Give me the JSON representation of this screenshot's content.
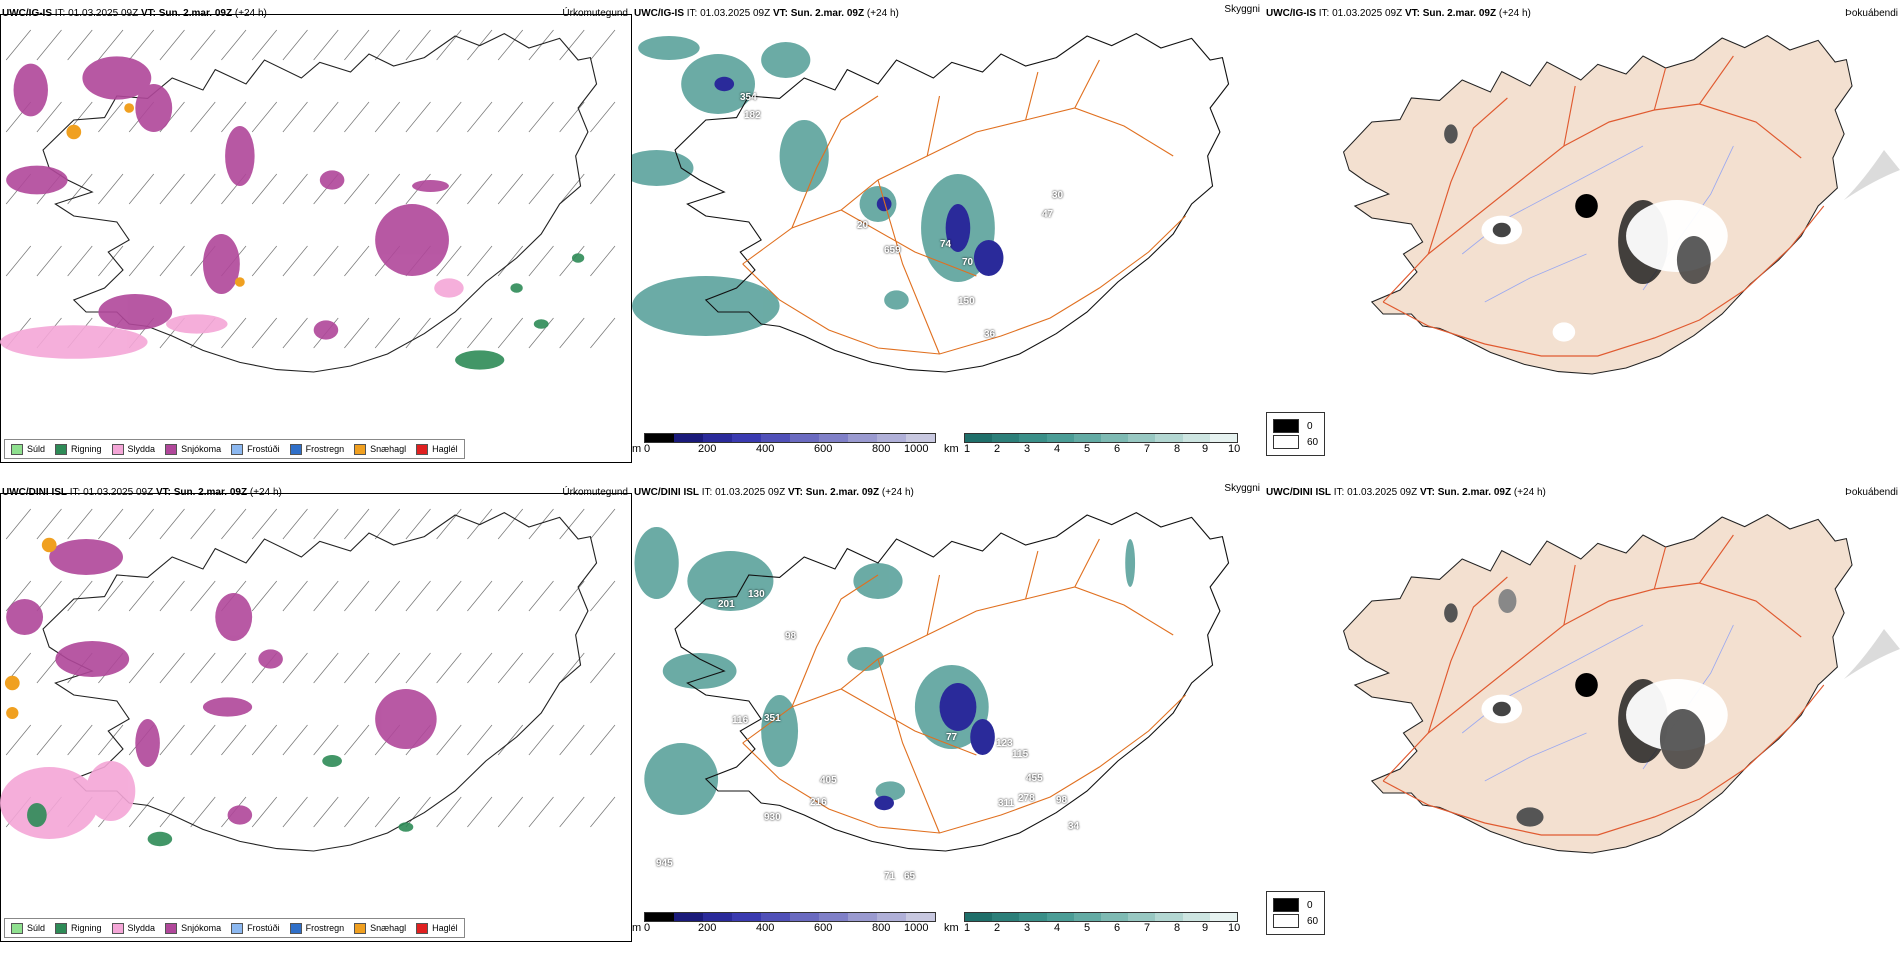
{
  "rows": [
    {
      "precip": {
        "title_bold": "UWC/IG-IS",
        "title_mid": " IT: 01.03.2025 09Z ",
        "title_vt": "VT: Sun. 2.mar. 09Z",
        "title_end": " (+24 h)",
        "right_label": "Úrkomutegund"
      },
      "cloud": {
        "title_bold": "UWC/IG-IS",
        "title_mid": " IT: 01.03.2025 09Z ",
        "title_vt": "VT: Sun. 2.mar. 09Z",
        "title_end": " (+24 h)",
        "right_label": "Skyggni",
        "labels": [
          "354",
          "182",
          "20",
          "659",
          "74",
          "70",
          "47",
          "30",
          "150",
          "36"
        ]
      },
      "fog": {
        "title_bold": "UWC/IG-IS",
        "title_mid": " IT: 01.03.2025 09Z ",
        "title_vt": "VT: Sun. 2.mar. 09Z",
        "title_end": " (+24 h)",
        "right_label": "Þokuábendi"
      }
    },
    {
      "precip": {
        "title_bold": "UWC/DINI ISL",
        "title_mid": " IT: 01.03.2025 09Z ",
        "title_vt": "VT: Sun. 2.mar. 09Z",
        "title_end": " (+24 h)",
        "right_label": "Úrkomutegund"
      },
      "cloud": {
        "title_bold": "UWC/DINI ISL",
        "title_mid": " IT: 01.03.2025 09Z ",
        "title_vt": "VT: Sun. 2.mar. 09Z",
        "title_end": " (+24 h)",
        "right_label": "Skyggni",
        "labels": [
          "201",
          "130",
          "98",
          "116",
          "351",
          "405",
          "216",
          "930",
          "945",
          "77",
          "123",
          "115",
          "455",
          "278",
          "311",
          "98",
          "34",
          "71",
          "65"
        ]
      },
      "fog": {
        "title_bold": "UWC/DINI ISL",
        "title_mid": " IT: 01.03.2025 09Z ",
        "title_vt": "VT: Sun. 2.mar. 09Z",
        "title_end": " (+24 h)",
        "right_label": "Þokuábendi"
      }
    }
  ],
  "precip_legend": [
    {
      "label": "Súld",
      "color": "#8fe08f"
    },
    {
      "label": "Rigning",
      "color": "#2e8b57"
    },
    {
      "label": "Slydda",
      "color": "#f4a6d7"
    },
    {
      "label": "Snjókoma",
      "color": "#b0479a"
    },
    {
      "label": "Frostúði",
      "color": "#8cb8f0"
    },
    {
      "label": "Frostregn",
      "color": "#2f6fc8"
    },
    {
      "label": "Snæhagl",
      "color": "#f0a020"
    },
    {
      "label": "Haglél",
      "color": "#e02020"
    }
  ],
  "cloudbase_bar": {
    "unit": "m",
    "ticks": [
      "0",
      "200",
      "400",
      "600",
      "800",
      "1000"
    ],
    "colors": [
      "#000000",
      "#1a1a7a",
      "#2a2a9a",
      "#3a3ab0",
      "#5050b8",
      "#6a6ac0",
      "#8080c8",
      "#9a9ad0",
      "#b0b0d8",
      "#c8c8e0"
    ]
  },
  "vis_bar": {
    "unit": "km",
    "ticks": [
      "1",
      "2",
      "3",
      "4",
      "5",
      "6",
      "7",
      "8",
      "9",
      "10"
    ],
    "colors": [
      "#1f6f6a",
      "#2c7f79",
      "#3a8f88",
      "#4b9d96",
      "#63aba4",
      "#7ebab3",
      "#98c8c2",
      "#b3d7d2",
      "#cde5e1",
      "#e6f2f0"
    ]
  },
  "fog_legend": [
    {
      "label": "0",
      "color": "#000000"
    },
    {
      "label": "60",
      "color": "#ffffff"
    }
  ]
}
